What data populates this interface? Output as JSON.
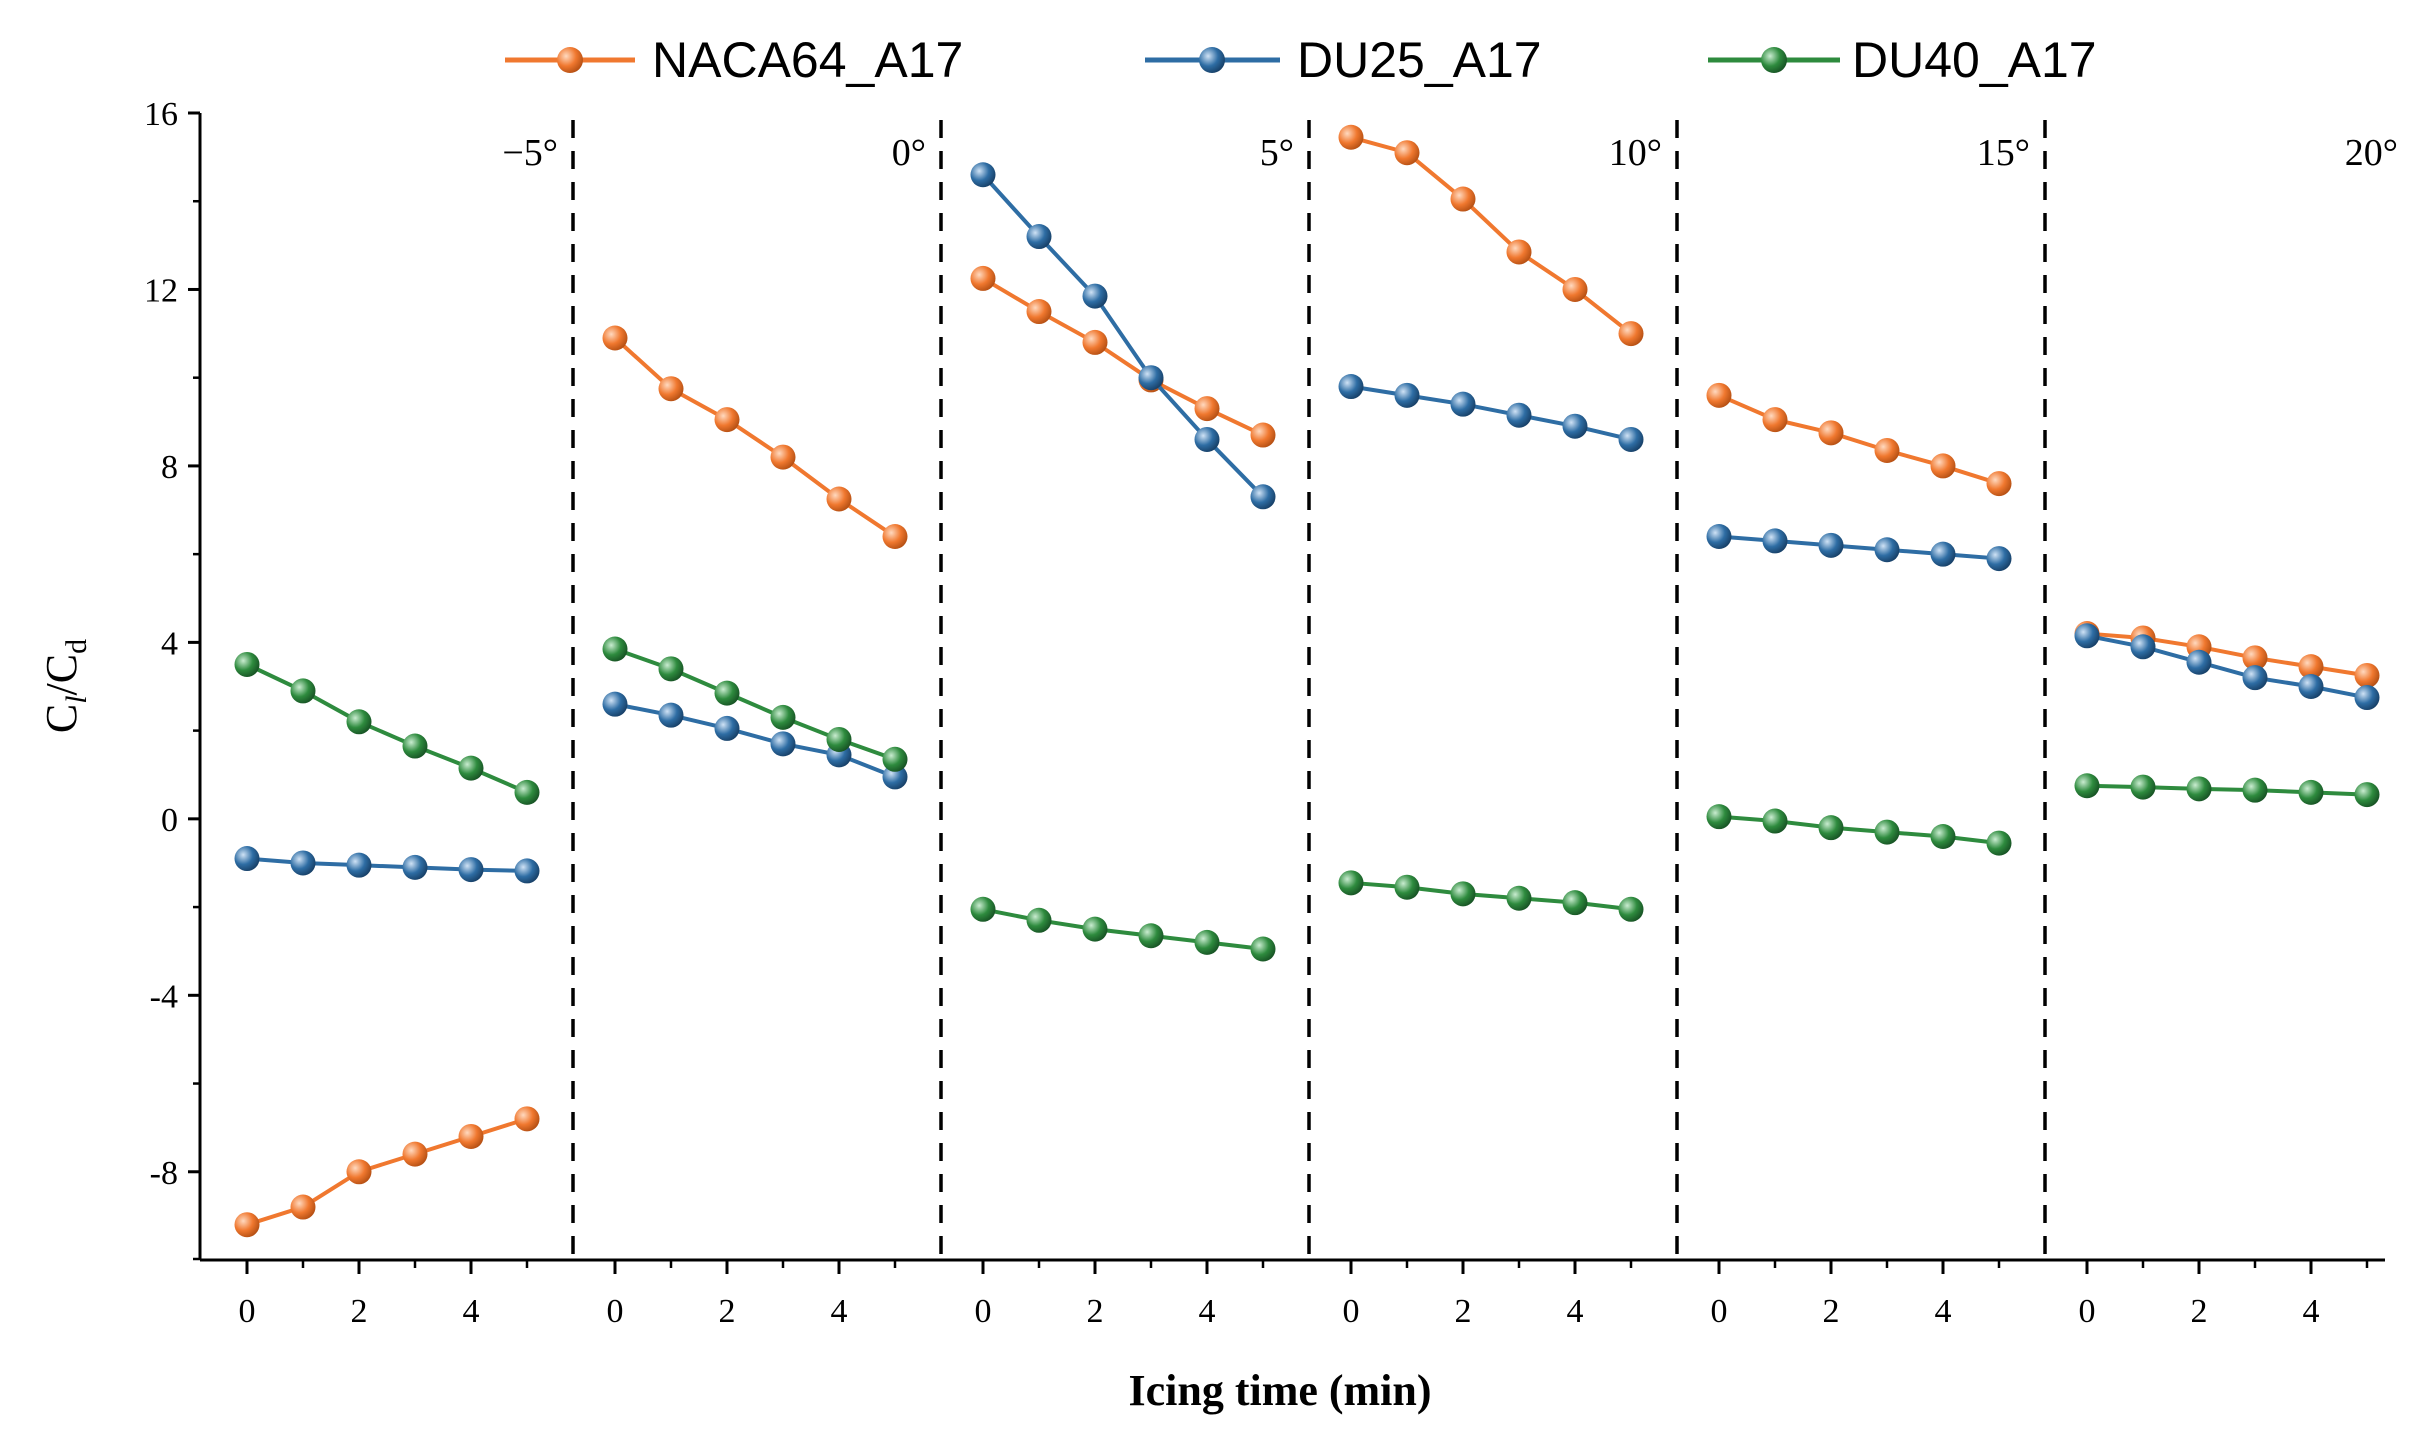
{
  "chart_data": {
    "type": "line",
    "title": "",
    "xlabel": "Icing time (min)",
    "ylabel": {
      "main": "C",
      "sub1": "l",
      "slash": "/C",
      "sub2": "d"
    },
    "ylim": [
      -10,
      16
    ],
    "yticks": [
      -8,
      -4,
      0,
      4,
      8,
      12,
      16
    ],
    "ytick_labels": [
      "-8",
      "-4",
      "0",
      "4",
      "8",
      "12",
      "16"
    ],
    "x": [
      0,
      1,
      2,
      3,
      4,
      5
    ],
    "xtick_labels": [
      "0",
      "2",
      "4"
    ],
    "legend": {
      "placement": "top-center",
      "entries": [
        "NACA64_A17",
        "DU25_A17",
        "DU40_A17"
      ]
    },
    "colors": {
      "NACA64_A17": "#f0782f",
      "DU25_A17": "#2e6da4",
      "DU40_A17": "#2e8b3e"
    },
    "panels": [
      {
        "angle": "−5°",
        "series": [
          {
            "name": "NACA64_A17",
            "values": [
              -9.2,
              -8.8,
              -8.0,
              -7.6,
              -7.2,
              -6.8
            ]
          },
          {
            "name": "DU25_A17",
            "values": [
              -0.9,
              -1.0,
              -1.05,
              -1.1,
              -1.15,
              -1.18
            ]
          },
          {
            "name": "DU40_A17",
            "values": [
              3.5,
              2.9,
              2.2,
              1.65,
              1.15,
              0.6
            ]
          }
        ]
      },
      {
        "angle": "0°",
        "series": [
          {
            "name": "NACA64_A17",
            "values": [
              10.9,
              9.75,
              9.05,
              8.2,
              7.25,
              6.4
            ]
          },
          {
            "name": "DU25_A17",
            "values": [
              2.6,
              2.35,
              2.05,
              1.7,
              1.45,
              0.95
            ]
          },
          {
            "name": "DU40_A17",
            "values": [
              3.85,
              3.4,
              2.85,
              2.3,
              1.8,
              1.35
            ]
          }
        ]
      },
      {
        "angle": "5°",
        "series": [
          {
            "name": "NACA64_A17",
            "values": [
              12.25,
              11.5,
              10.8,
              9.95,
              9.3,
              8.7
            ]
          },
          {
            "name": "DU25_A17",
            "values": [
              14.6,
              13.2,
              11.85,
              10.0,
              8.6,
              7.3
            ]
          },
          {
            "name": "DU40_A17",
            "values": [
              -2.05,
              -2.3,
              -2.5,
              -2.65,
              -2.8,
              -2.95
            ]
          }
        ]
      },
      {
        "angle": "10°",
        "series": [
          {
            "name": "NACA64_A17",
            "values": [
              15.45,
              15.1,
              14.05,
              12.85,
              12.0,
              11.0
            ]
          },
          {
            "name": "DU25_A17",
            "values": [
              9.8,
              9.6,
              9.4,
              9.15,
              8.9,
              8.6
            ]
          },
          {
            "name": "DU40_A17",
            "values": [
              -1.45,
              -1.55,
              -1.7,
              -1.8,
              -1.9,
              -2.05
            ]
          }
        ]
      },
      {
        "angle": "15°",
        "series": [
          {
            "name": "NACA64_A17",
            "values": [
              9.6,
              9.05,
              8.75,
              8.35,
              8.0,
              7.6
            ]
          },
          {
            "name": "DU25_A17",
            "values": [
              6.4,
              6.3,
              6.2,
              6.1,
              6.0,
              5.9
            ]
          },
          {
            "name": "DU40_A17",
            "values": [
              0.05,
              -0.05,
              -0.2,
              -0.3,
              -0.4,
              -0.55
            ]
          }
        ]
      },
      {
        "angle": "20°",
        "series": [
          {
            "name": "NACA64_A17",
            "values": [
              4.2,
              4.1,
              3.9,
              3.65,
              3.45,
              3.25
            ]
          },
          {
            "name": "DU25_A17",
            "values": [
              4.15,
              3.9,
              3.55,
              3.2,
              3.0,
              2.75
            ]
          },
          {
            "name": "DU40_A17",
            "values": [
              0.75,
              0.72,
              0.68,
              0.65,
              0.6,
              0.55
            ]
          }
        ]
      }
    ]
  }
}
